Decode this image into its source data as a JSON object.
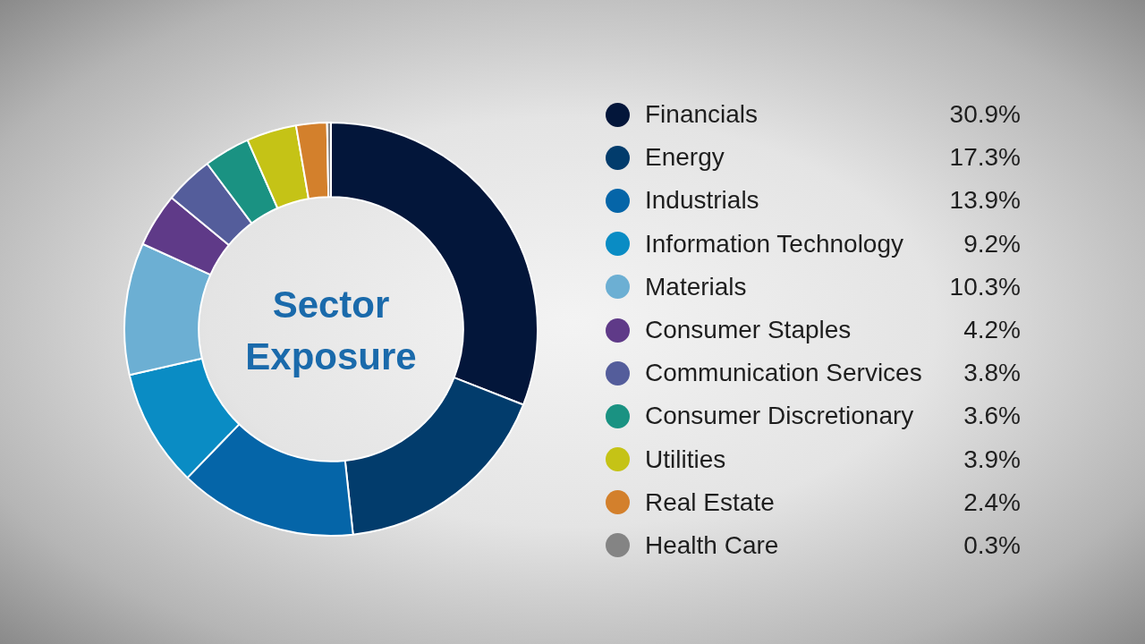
{
  "chart_data": {
    "type": "donut",
    "title": "Sector Exposure",
    "categories": [
      "Financials",
      "Energy",
      "Industrials",
      "Information Technology",
      "Materials",
      "Consumer Staples",
      "Communication Services",
      "Consumer Discretionary",
      "Utilities",
      "Real Estate",
      "Health Care"
    ],
    "values": [
      30.9,
      17.3,
      13.9,
      9.2,
      10.3,
      4.2,
      3.8,
      3.6,
      3.9,
      2.4,
      0.3
    ],
    "value_labels": [
      "30.9%",
      "17.3%",
      "13.9%",
      "9.2%",
      "10.3%",
      "4.2%",
      "3.8%",
      "3.6%",
      "3.9%",
      "2.4%",
      "0.3%"
    ],
    "colors": [
      "#03163a",
      "#023c6c",
      "#0565a8",
      "#0a8cc4",
      "#6cafd3",
      "#5f3a88",
      "#545d9b",
      "#1a9282",
      "#c5c316",
      "#d3802c",
      "#848484"
    ],
    "legend": "right"
  }
}
